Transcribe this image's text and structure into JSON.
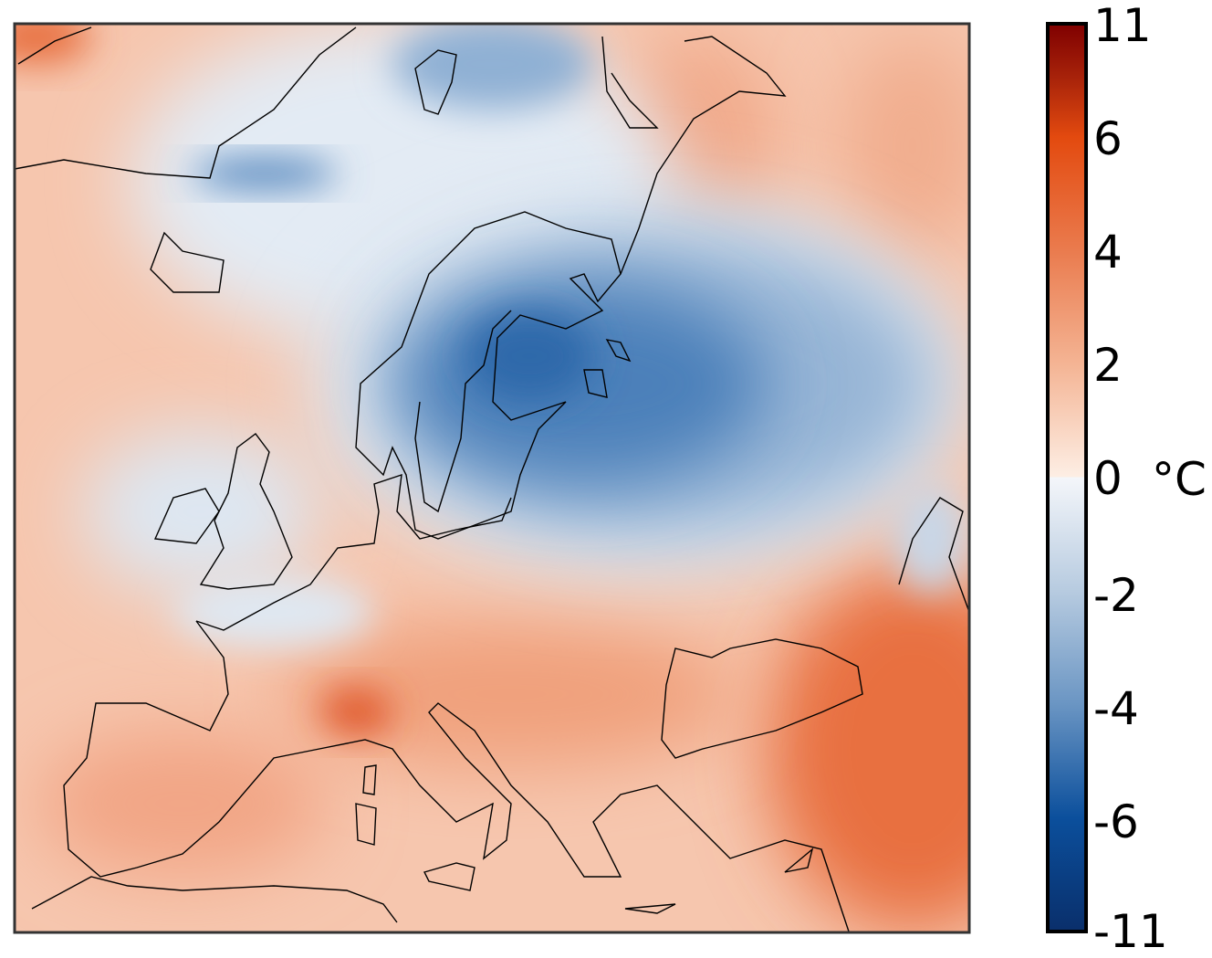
{
  "colorbar": {
    "unit": "°C",
    "ticks": [
      "11",
      "6",
      "4",
      "2",
      "0",
      "-2",
      "-4",
      "-6",
      "-11"
    ],
    "colors": [
      "#7f0000",
      "#a8230a",
      "#e34a0f",
      "#ea7b4e",
      "#f4b494",
      "#fde7da",
      "#f2f4f8",
      "#c3d3e4",
      "#87a9cc",
      "#4b7fb5",
      "#1958a2",
      "#0b4b94",
      "#0a2f6b"
    ]
  },
  "map": {
    "region": "Europe",
    "field": "temperature anomaly",
    "colors": {
      "warm": "#f4b89c",
      "warm_strong": "#e6622f",
      "cold_light": "#dbe5f0",
      "cold": "#9bb8d8",
      "cold_strong": "#2f6aaa",
      "coast": "#000000"
    }
  }
}
